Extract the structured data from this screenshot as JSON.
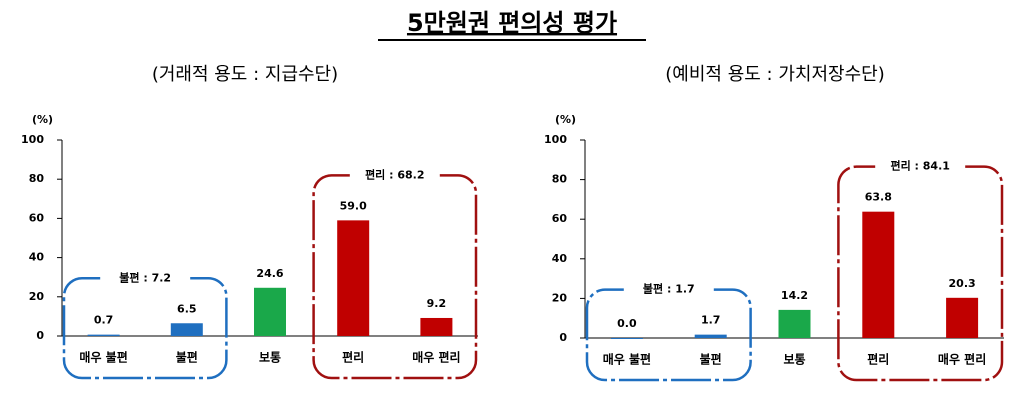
{
  "title": "5만원권 편의성 평가",
  "chart_data": [
    {
      "type": "bar",
      "subtitle": "(거래적 용도 : 지급수단)",
      "unit": "(%)",
      "categories": [
        "매우 불편",
        "불편",
        "보통",
        "편리",
        "매우 편리"
      ],
      "values": [
        0.7,
        6.5,
        24.6,
        59.0,
        9.2
      ],
      "value_labels": [
        "0.7",
        "6.5",
        "24.6",
        "59.0",
        "9.2"
      ],
      "colors": [
        "#1f6fc0",
        "#1f6fc0",
        "#1aa84a",
        "#c00000",
        "#c00000"
      ],
      "ylim": [
        0,
        100
      ],
      "yticks": [
        0,
        20,
        40,
        60,
        80,
        100
      ],
      "groups": [
        {
          "label": "불편 : 7.2",
          "categories": [
            "매우 불편",
            "불편"
          ],
          "color": "#1f6fc0"
        },
        {
          "label": "편리 : 68.2",
          "categories": [
            "편리",
            "매우 편리"
          ],
          "color": "#a01010"
        }
      ]
    },
    {
      "type": "bar",
      "subtitle": "(예비적 용도 : 가치저장수단)",
      "unit": "(%)",
      "categories": [
        "매우 불편",
        "불편",
        "보통",
        "편리",
        "매우 편리"
      ],
      "values": [
        0.0,
        1.7,
        14.2,
        63.8,
        20.3
      ],
      "value_labels": [
        "0.0",
        "1.7",
        "14.2",
        "63.8",
        "20.3"
      ],
      "colors": [
        "#1f6fc0",
        "#1f6fc0",
        "#1aa84a",
        "#c00000",
        "#c00000"
      ],
      "ylim": [
        0,
        100
      ],
      "yticks": [
        0,
        20,
        40,
        60,
        80,
        100
      ],
      "groups": [
        {
          "label": "불편 : 1.7",
          "categories": [
            "매우 불편",
            "불편"
          ],
          "color": "#1f6fc0"
        },
        {
          "label": "편리 : 84.1",
          "categories": [
            "편리",
            "매우 편리"
          ],
          "color": "#a01010"
        }
      ]
    }
  ]
}
